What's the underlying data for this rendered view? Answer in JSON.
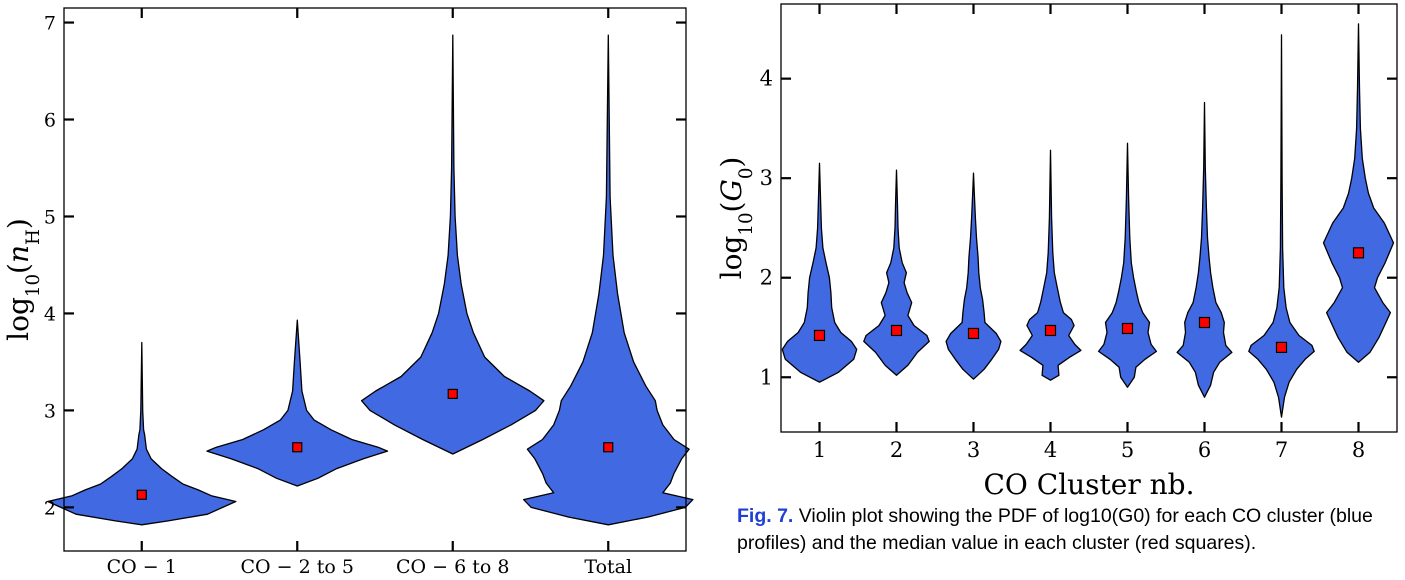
{
  "chart_data": [
    {
      "type": "violin",
      "ylabel": "log10(nH)",
      "categories": [
        "CO − 1",
        "CO − 2 to 5",
        "CO − 6 to 8",
        "Total"
      ],
      "yticks": [
        "2",
        "3",
        "4",
        "5",
        "6",
        "7"
      ],
      "ylim": [
        1.55,
        7.15
      ],
      "medians": [
        2.13,
        2.62,
        3.17,
        2.62
      ],
      "violins": [
        {
          "min": 1.82,
          "max": 3.7,
          "profile": [
            [
              1.82,
              0.0
            ],
            [
              1.86,
              0.28
            ],
            [
              1.93,
              0.7
            ],
            [
              2.0,
              0.86
            ],
            [
              2.06,
              1.0
            ],
            [
              2.12,
              0.74
            ],
            [
              2.18,
              0.6
            ],
            [
              2.24,
              0.44
            ],
            [
              2.32,
              0.32
            ],
            [
              2.4,
              0.21
            ],
            [
              2.5,
              0.1
            ],
            [
              2.6,
              0.05
            ],
            [
              2.75,
              0.03
            ],
            [
              2.8,
              0.02
            ],
            [
              3.0,
              0.01
            ],
            [
              3.7,
              0.0
            ]
          ]
        },
        {
          "min": 2.22,
          "max": 3.93,
          "profile": [
            [
              2.22,
              0.0
            ],
            [
              2.3,
              0.22
            ],
            [
              2.4,
              0.42
            ],
            [
              2.5,
              0.7
            ],
            [
              2.58,
              0.96
            ],
            [
              2.62,
              0.86
            ],
            [
              2.7,
              0.58
            ],
            [
              2.8,
              0.36
            ],
            [
              2.9,
              0.18
            ],
            [
              3.0,
              0.1
            ],
            [
              3.2,
              0.05
            ],
            [
              3.5,
              0.03
            ],
            [
              3.93,
              0.0
            ]
          ]
        },
        {
          "min": 2.55,
          "max": 6.87,
          "profile": [
            [
              2.55,
              0.0
            ],
            [
              2.7,
              0.32
            ],
            [
              2.85,
              0.62
            ],
            [
              3.0,
              0.88
            ],
            [
              3.1,
              0.97
            ],
            [
              3.2,
              0.82
            ],
            [
              3.35,
              0.55
            ],
            [
              3.55,
              0.34
            ],
            [
              3.8,
              0.22
            ],
            [
              4.0,
              0.15
            ],
            [
              4.3,
              0.09
            ],
            [
              4.6,
              0.05
            ],
            [
              5.0,
              0.025
            ],
            [
              5.5,
              0.012
            ],
            [
              6.87,
              0.0
            ]
          ]
        },
        {
          "min": 1.82,
          "max": 6.87,
          "profile": [
            [
              1.82,
              0.0
            ],
            [
              1.9,
              0.42
            ],
            [
              2.0,
              0.82
            ],
            [
              2.08,
              0.9
            ],
            [
              2.15,
              0.58
            ],
            [
              2.25,
              0.66
            ],
            [
              2.35,
              0.7
            ],
            [
              2.5,
              0.78
            ],
            [
              2.6,
              0.86
            ],
            [
              2.7,
              0.7
            ],
            [
              2.85,
              0.58
            ],
            [
              3.0,
              0.52
            ],
            [
              3.1,
              0.5
            ],
            [
              3.25,
              0.4
            ],
            [
              3.5,
              0.27
            ],
            [
              3.8,
              0.17
            ],
            [
              4.2,
              0.1
            ],
            [
              4.6,
              0.05
            ],
            [
              5.2,
              0.02
            ],
            [
              6.87,
              0.0
            ]
          ]
        }
      ]
    },
    {
      "type": "violin",
      "ylabel": "log10(G0)",
      "xlabel": "CO Cluster nb.",
      "categories": [
        "1",
        "2",
        "3",
        "4",
        "5",
        "6",
        "7",
        "8"
      ],
      "yticks": [
        "1",
        "2",
        "3",
        "4"
      ],
      "ylim": [
        0.45,
        4.75
      ],
      "medians": [
        1.42,
        1.47,
        1.44,
        1.47,
        1.49,
        1.55,
        1.3,
        2.25
      ],
      "violins": [
        {
          "min": 0.95,
          "max": 3.15,
          "profile": [
            [
              0.95,
              0.0
            ],
            [
              1.05,
              0.5
            ],
            [
              1.18,
              0.9
            ],
            [
              1.28,
              0.98
            ],
            [
              1.36,
              0.84
            ],
            [
              1.45,
              0.56
            ],
            [
              1.55,
              0.4
            ],
            [
              1.7,
              0.32
            ],
            [
              1.85,
              0.3
            ],
            [
              2.0,
              0.26
            ],
            [
              2.15,
              0.17
            ],
            [
              2.3,
              0.09
            ],
            [
              2.5,
              0.05
            ],
            [
              2.8,
              0.025
            ],
            [
              3.15,
              0.0
            ]
          ]
        },
        {
          "min": 1.02,
          "max": 3.08,
          "profile": [
            [
              1.02,
              0.0
            ],
            [
              1.12,
              0.3
            ],
            [
              1.25,
              0.55
            ],
            [
              1.36,
              0.86
            ],
            [
              1.42,
              0.8
            ],
            [
              1.52,
              0.46
            ],
            [
              1.62,
              0.3
            ],
            [
              1.75,
              0.4
            ],
            [
              1.85,
              0.28
            ],
            [
              1.95,
              0.2
            ],
            [
              2.05,
              0.26
            ],
            [
              2.15,
              0.15
            ],
            [
              2.3,
              0.07
            ],
            [
              2.5,
              0.04
            ],
            [
              2.8,
              0.02
            ],
            [
              3.08,
              0.0
            ]
          ]
        },
        {
          "min": 0.98,
          "max": 3.05,
          "profile": [
            [
              0.98,
              0.0
            ],
            [
              1.08,
              0.28
            ],
            [
              1.18,
              0.48
            ],
            [
              1.28,
              0.66
            ],
            [
              1.36,
              0.72
            ],
            [
              1.44,
              0.6
            ],
            [
              1.55,
              0.3
            ],
            [
              1.65,
              0.28
            ],
            [
              1.78,
              0.24
            ],
            [
              1.9,
              0.18
            ],
            [
              2.05,
              0.14
            ],
            [
              2.2,
              0.12
            ],
            [
              2.4,
              0.08
            ],
            [
              2.6,
              0.05
            ],
            [
              2.85,
              0.02
            ],
            [
              3.05,
              0.0
            ]
          ]
        },
        {
          "min": 0.97,
          "max": 3.28,
          "profile": [
            [
              0.97,
              0.0
            ],
            [
              1.02,
              0.22
            ],
            [
              1.12,
              0.2
            ],
            [
              1.2,
              0.5
            ],
            [
              1.27,
              0.8
            ],
            [
              1.33,
              0.64
            ],
            [
              1.42,
              0.48
            ],
            [
              1.52,
              0.62
            ],
            [
              1.58,
              0.55
            ],
            [
              1.65,
              0.34
            ],
            [
              1.75,
              0.26
            ],
            [
              1.9,
              0.18
            ],
            [
              2.05,
              0.1
            ],
            [
              2.25,
              0.06
            ],
            [
              2.6,
              0.03
            ],
            [
              3.28,
              0.0
            ]
          ]
        },
        {
          "min": 0.9,
          "max": 3.35,
          "profile": [
            [
              0.9,
              0.0
            ],
            [
              1.0,
              0.18
            ],
            [
              1.1,
              0.22
            ],
            [
              1.18,
              0.46
            ],
            [
              1.26,
              0.76
            ],
            [
              1.33,
              0.62
            ],
            [
              1.45,
              0.54
            ],
            [
              1.55,
              0.58
            ],
            [
              1.65,
              0.4
            ],
            [
              1.75,
              0.3
            ],
            [
              1.85,
              0.24
            ],
            [
              2.0,
              0.16
            ],
            [
              2.15,
              0.1
            ],
            [
              2.4,
              0.06
            ],
            [
              2.8,
              0.03
            ],
            [
              3.35,
              0.0
            ]
          ]
        },
        {
          "min": 0.8,
          "max": 3.76,
          "profile": [
            [
              0.8,
              0.0
            ],
            [
              0.92,
              0.16
            ],
            [
              1.05,
              0.24
            ],
            [
              1.15,
              0.4
            ],
            [
              1.25,
              0.72
            ],
            [
              1.32,
              0.56
            ],
            [
              1.45,
              0.5
            ],
            [
              1.55,
              0.52
            ],
            [
              1.65,
              0.44
            ],
            [
              1.75,
              0.3
            ],
            [
              1.9,
              0.22
            ],
            [
              2.05,
              0.16
            ],
            [
              2.2,
              0.12
            ],
            [
              2.4,
              0.08
            ],
            [
              2.7,
              0.05
            ],
            [
              3.1,
              0.02
            ],
            [
              3.76,
              0.0
            ]
          ]
        },
        {
          "min": 0.6,
          "max": 4.44,
          "profile": [
            [
              0.6,
              0.0
            ],
            [
              0.8,
              0.08
            ],
            [
              0.95,
              0.2
            ],
            [
              1.08,
              0.4
            ],
            [
              1.18,
              0.62
            ],
            [
              1.26,
              0.86
            ],
            [
              1.32,
              0.8
            ],
            [
              1.42,
              0.46
            ],
            [
              1.55,
              0.22
            ],
            [
              1.7,
              0.12
            ],
            [
              1.9,
              0.06
            ],
            [
              2.3,
              0.03
            ],
            [
              3.0,
              0.015
            ],
            [
              4.44,
              0.0
            ]
          ]
        },
        {
          "min": 1.15,
          "max": 4.55,
          "profile": [
            [
              1.15,
              0.0
            ],
            [
              1.25,
              0.3
            ],
            [
              1.4,
              0.54
            ],
            [
              1.55,
              0.72
            ],
            [
              1.65,
              0.84
            ],
            [
              1.75,
              0.64
            ],
            [
              1.9,
              0.42
            ],
            [
              2.0,
              0.5
            ],
            [
              2.15,
              0.7
            ],
            [
              2.35,
              0.92
            ],
            [
              2.55,
              0.68
            ],
            [
              2.7,
              0.4
            ],
            [
              2.85,
              0.26
            ],
            [
              3.0,
              0.18
            ],
            [
              3.2,
              0.1
            ],
            [
              3.5,
              0.05
            ],
            [
              3.9,
              0.025
            ],
            [
              4.55,
              0.0
            ]
          ]
        }
      ]
    }
  ],
  "caption": {
    "figref": "Fig. 7.",
    "text": "Violin plot showing the PDF of log10(G0) for each CO cluster (blue profiles) and the median value in each cluster (red squares)."
  },
  "colors": {
    "violin_fill": "#4169e1",
    "violin_edge": "#000000",
    "median_fill": "#ff0000",
    "median_edge": "#000000"
  }
}
